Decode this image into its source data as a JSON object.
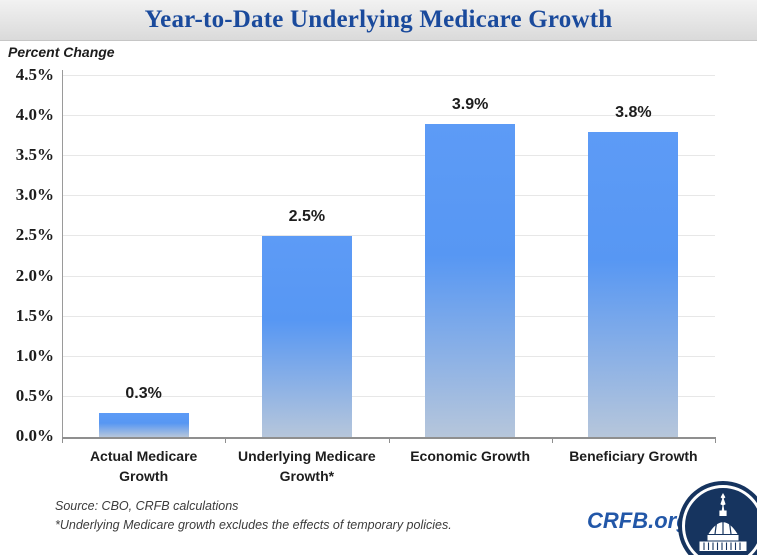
{
  "header": {
    "title": "Year-to-Date Underlying Medicare Growth"
  },
  "axis_title": "Percent Change",
  "chart_data": {
    "type": "bar",
    "title": "Year-to-Date Underlying Medicare Growth",
    "ylabel": "Percent Change",
    "categories": [
      "Actual Medicare Growth",
      "Underlying Medicare Growth*",
      "Economic Growth",
      "Beneficiary Growth"
    ],
    "values": [
      0.3,
      2.5,
      3.9,
      3.8
    ],
    "data_labels": [
      "0.3%",
      "2.5%",
      "3.9%",
      "3.8%"
    ],
    "ylim": [
      0,
      4.5
    ],
    "ytick_step": 0.5,
    "ytick_labels": [
      "0.0%",
      "0.5%",
      "1.0%",
      "1.5%",
      "2.0%",
      "2.5%",
      "3.0%",
      "3.5%",
      "4.0%",
      "4.5%"
    ],
    "grid": true,
    "legend": "none",
    "bar_color_top": "#5999f5",
    "bar_color_bottom": "#b6c6db"
  },
  "footer": {
    "source": "Source: CBO, CRFB calculations",
    "footnote": "*Underlying Medicare growth excludes the effects of temporary policies.",
    "brand": "CRFB.org"
  },
  "colors": {
    "title_blue": "#1a4a9c",
    "bar_blue": "#5999f5",
    "brand_blue": "#2257a8",
    "logo_navy": "#16345f",
    "axis_gray": "#8f8f8f",
    "gridline_gray": "#e7e7e7"
  }
}
